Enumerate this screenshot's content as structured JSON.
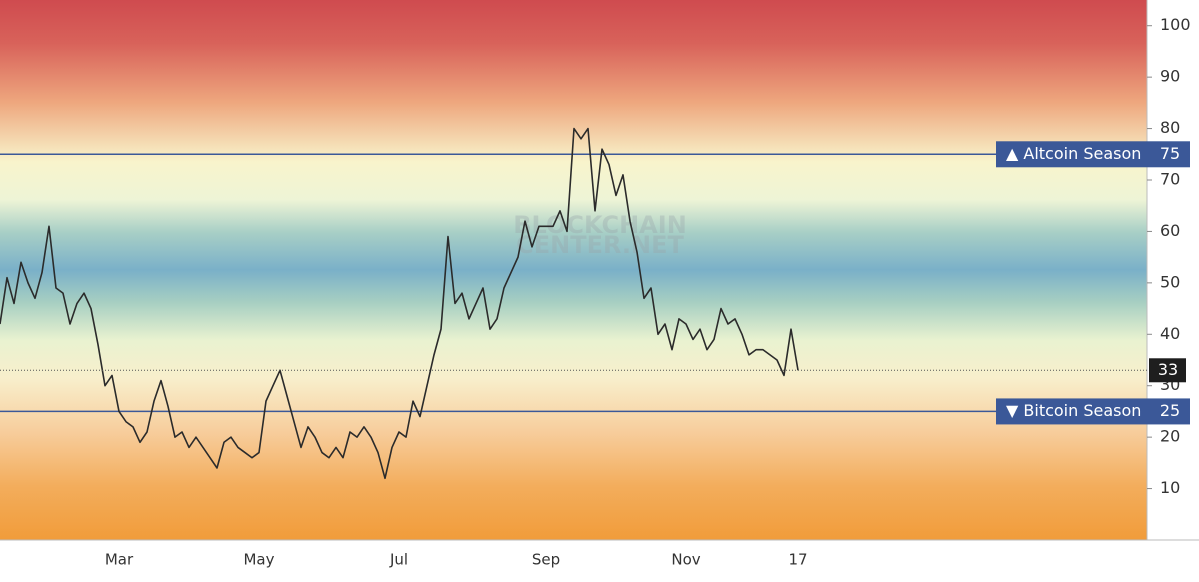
{
  "chart_data": {
    "type": "line",
    "watermark": [
      "BLOCKCHAIN",
      "CENTER.NET"
    ],
    "categories": [
      null,
      null,
      null,
      null,
      null,
      null,
      null,
      null,
      null,
      null,
      null,
      null,
      null,
      null,
      null,
      null,
      null,
      "Mar",
      null,
      null,
      null,
      null,
      null,
      null,
      null,
      null,
      null,
      null,
      null,
      null,
      null,
      null,
      null,
      null,
      null,
      null,
      null,
      "May",
      null,
      null,
      null,
      null,
      null,
      null,
      null,
      null,
      null,
      null,
      null,
      null,
      null,
      null,
      null,
      null,
      null,
      null,
      null,
      "Jul",
      null,
      null,
      null,
      null,
      null,
      null,
      null,
      null,
      null,
      null,
      null,
      null,
      null,
      null,
      null,
      null,
      null,
      null,
      null,
      null,
      "Sep",
      null,
      null,
      null,
      null,
      null,
      null,
      null,
      null,
      null,
      null,
      null,
      null,
      null,
      null,
      null,
      null,
      null,
      null,
      null,
      "Nov",
      null,
      null,
      null,
      null,
      null,
      null,
      null,
      null,
      null,
      null,
      null,
      null,
      null,
      null,
      null,
      "17"
    ],
    "values": [
      42,
      51,
      46,
      54,
      50,
      47,
      52,
      61,
      49,
      48,
      42,
      46,
      48,
      45,
      38,
      30,
      32,
      25,
      23,
      22,
      19,
      21,
      27,
      31,
      26,
      20,
      21,
      18,
      20,
      18,
      16,
      14,
      19,
      20,
      18,
      17,
      16,
      17,
      27,
      30,
      33,
      28,
      23,
      18,
      22,
      20,
      17,
      16,
      18,
      16,
      21,
      20,
      22,
      20,
      17,
      12,
      18,
      21,
      20,
      27,
      24,
      30,
      36,
      41,
      59,
      46,
      48,
      43,
      46,
      49,
      41,
      43,
      49,
      52,
      55,
      62,
      57,
      61,
      61,
      61,
      64,
      60,
      80,
      78,
      80,
      64,
      76,
      73,
      67,
      71,
      62,
      56,
      47,
      49,
      40,
      42,
      37,
      43,
      42,
      39,
      41,
      37,
      39,
      45,
      42,
      43,
      40,
      36,
      37,
      37,
      36,
      35,
      32,
      41,
      33
    ],
    "color": "#2b2b2b",
    "ylim": [
      0,
      105
    ],
    "yticks": [
      10,
      20,
      30,
      40,
      50,
      60,
      70,
      80,
      90,
      100
    ],
    "reference_lines": [
      {
        "value": 75,
        "label": "▲ Altcoin Season",
        "color": "#3b5898"
      },
      {
        "value": 25,
        "label": "▼ Bitcoin Season",
        "color": "#3b5898"
      }
    ]
  }
}
